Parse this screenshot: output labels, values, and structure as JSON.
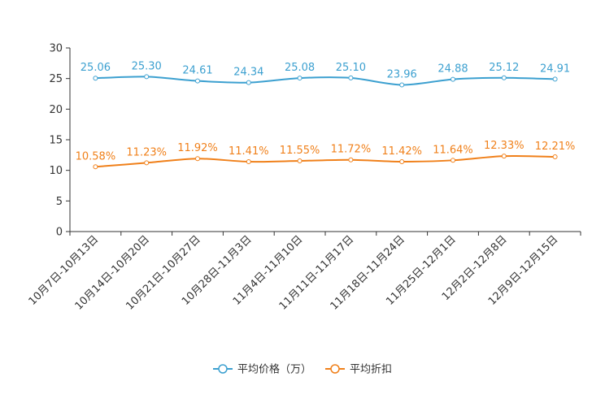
{
  "chart_data": {
    "type": "line",
    "title": "",
    "xlabel": "",
    "ylabel": "",
    "ylim": [
      0,
      30
    ],
    "yticks": [
      0,
      5,
      10,
      15,
      20,
      25,
      30
    ],
    "yticks_text": [
      "0",
      "5",
      "10",
      "15",
      "20",
      "25",
      "30"
    ],
    "categories": [
      "10月7日-10月13日",
      "10月14日-10月20日",
      "10月21日-10月27日",
      "10月28日-11月3日",
      "11月4日-11月10日",
      "11月11日-11月17日",
      "11月18日-11月24日",
      "11月25日-12月1日",
      "12月2日-12月8日",
      "12月9日-12月15日"
    ],
    "legend_position": "bottom-center",
    "series": [
      {
        "name": "平均价格（万）",
        "color": "#3ca0d0",
        "values": [
          25.06,
          25.3,
          24.61,
          24.34,
          25.08,
          25.1,
          23.96,
          24.88,
          25.12,
          24.91
        ],
        "labels": [
          "25.06",
          "25.30",
          "24.61",
          "24.34",
          "25.08",
          "25.10",
          "23.96",
          "24.88",
          "25.12",
          "24.91"
        ]
      },
      {
        "name": "平均折扣",
        "color": "#f0801a",
        "values": [
          10.58,
          11.23,
          11.92,
          11.41,
          11.55,
          11.72,
          11.42,
          11.64,
          12.33,
          12.21
        ],
        "labels": [
          "10.58%",
          "11.23%",
          "11.92%",
          "11.41%",
          "11.55%",
          "11.72%",
          "11.42%",
          "11.64%",
          "12.33%",
          "12.21%"
        ]
      }
    ]
  }
}
